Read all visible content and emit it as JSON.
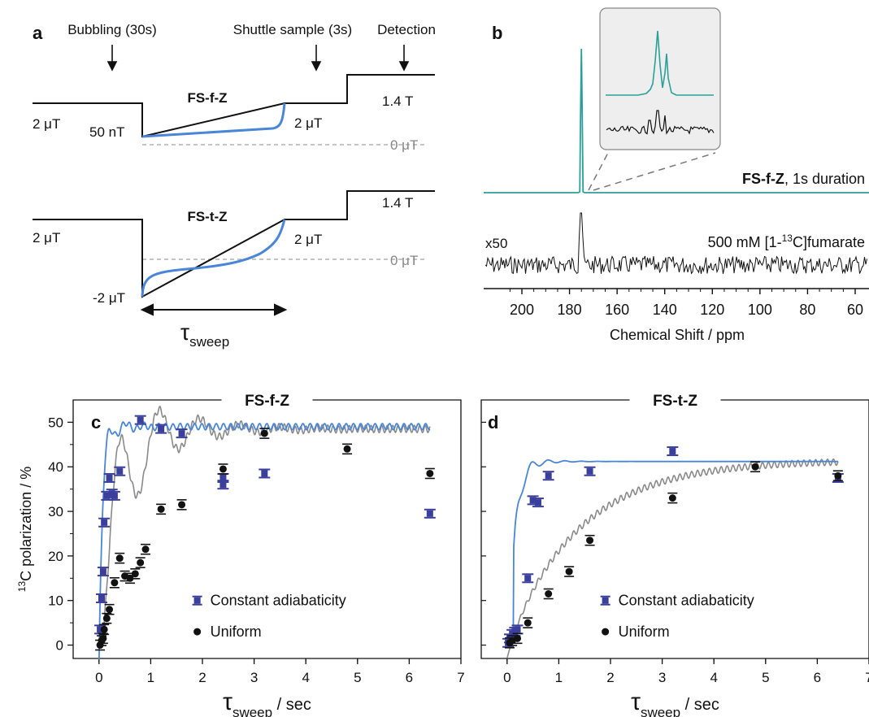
{
  "panel_a": {
    "letter": "a",
    "annotations": {
      "bubbling": "Bubbling (30s)",
      "shuttle": "Shuttle sample (3s)",
      "detection": "Detection"
    },
    "top": {
      "name": "FS-f-Z",
      "left_field": "2 μT",
      "low_field": "50 nT",
      "right_field": "2 μT",
      "high_field": "1.4 T",
      "zero": "0 μT"
    },
    "bottom": {
      "name": "FS-t-Z",
      "left_field": "2 μT",
      "low_field": "-2 μT",
      "right_field": "2 μT",
      "high_field": "1.4 T",
      "zero": "0 μT",
      "sweep_symbol": "τ",
      "sweep_sub": "sweep"
    }
  },
  "panel_b": {
    "letter": "b",
    "top_label_bold": "FS-f-Z",
    "top_label_rest": ", 1s duration",
    "bottom_label_prefix": "500 mM [1-",
    "bottom_label_sup": "13",
    "bottom_label_suffix": "C]fumarate",
    "scale": "x50",
    "xlabel": "Chemical Shift / ppm",
    "ticks": [
      "200",
      "180",
      "160",
      "140",
      "120",
      "100",
      "80",
      "60"
    ]
  },
  "colors": {
    "blue_line": "#4a86d8",
    "blue_marker": "#3a3f9c",
    "teal": "#2aa198",
    "black": "#111111",
    "gray_line": "#8a8a8a",
    "zero_line": "#b0b0b0"
  },
  "chart_data": [
    {
      "panel": "c",
      "type": "scatter",
      "title": "FS-f-Z",
      "xlabel_symbol": "τ",
      "xlabel_sub": "sweep",
      "xlabel_rest": " / sec",
      "ylabel_sup": "13",
      "ylabel_rest": "C polarization / %",
      "xlim": [
        -0.5,
        7
      ],
      "ylim": [
        -3,
        55
      ],
      "xticks": [
        0,
        1,
        2,
        3,
        4,
        5,
        6,
        7
      ],
      "yticks": [
        0,
        10,
        20,
        30,
        40,
        50
      ],
      "legend_position": "right",
      "series": [
        {
          "name": "Constant adiabaticity",
          "kind": "points",
          "x": [
            0.02,
            0.05,
            0.08,
            0.1,
            0.15,
            0.2,
            0.25,
            0.3,
            0.4,
            0.8,
            1.2,
            1.6,
            2.4,
            2.4,
            3.2,
            6.4
          ],
          "y": [
            3.5,
            10.5,
            16.5,
            27.5,
            33.5,
            37.5,
            34,
            33.5,
            39,
            50.5,
            48.5,
            47.5,
            36,
            37.5,
            38.5,
            29.5
          ]
        },
        {
          "name": "Uniform",
          "kind": "points",
          "x": [
            0.02,
            0.05,
            0.08,
            0.1,
            0.15,
            0.2,
            0.3,
            0.4,
            0.5,
            0.6,
            0.7,
            0.8,
            0.9,
            1.2,
            1.6,
            2.4,
            3.2,
            4.8,
            6.4
          ],
          "y": [
            0,
            1,
            1.5,
            3.5,
            6,
            8,
            14,
            19.5,
            15.5,
            15,
            16,
            18.5,
            21.5,
            30.5,
            31.5,
            39.5,
            47.5,
            44,
            38.5
          ]
        }
      ]
    },
    {
      "panel": "d",
      "type": "scatter",
      "title": "FS-t-Z",
      "xlabel_symbol": "τ",
      "xlabel_sub": "sweep",
      "xlabel_rest": " / sec",
      "xlim": [
        -0.5,
        7
      ],
      "ylim": [
        -3,
        55
      ],
      "xticks": [
        0,
        1,
        2,
        3,
        4,
        5,
        6,
        7
      ],
      "legend_position": "right",
      "series": [
        {
          "name": "Constant adiabaticity",
          "kind": "points",
          "x": [
            0.02,
            0.05,
            0.1,
            0.15,
            0.2,
            0.4,
            0.5,
            0.6,
            0.8,
            1.6,
            3.2,
            6.4
          ],
          "y": [
            0.5,
            1.5,
            2.5,
            3,
            3.5,
            15,
            32.5,
            32,
            38,
            39,
            43.5,
            37.5
          ]
        },
        {
          "name": "Uniform",
          "kind": "points",
          "x": [
            0.05,
            0.1,
            0.2,
            0.4,
            0.8,
            1.2,
            1.6,
            3.2,
            4.8,
            6.4
          ],
          "y": [
            0.5,
            1,
            1.5,
            5,
            11.5,
            16.5,
            23.5,
            33,
            40,
            38
          ]
        }
      ]
    }
  ]
}
